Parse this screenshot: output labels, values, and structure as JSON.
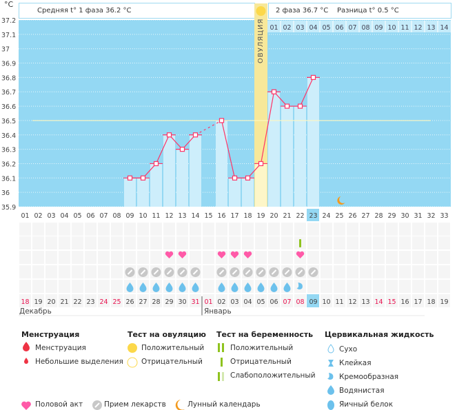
{
  "header": {
    "phase1": "Средняя t° 1 фаза 36.2 °C",
    "phase2": "2 фаза 36.7 °C",
    "diff": "Разница t° 0.5 °C",
    "unit": "°C",
    "ovulation_label": "ОВУЛЯЦИЯ"
  },
  "chart_data": {
    "type": "bar",
    "title": "",
    "ylabel": "°C",
    "ylim": [
      35.9,
      37.2
    ],
    "yticks": [
      "37.2",
      "37.1",
      "37",
      "36.9",
      "36.8",
      "36.7",
      "36.6",
      "36.5",
      "36.4",
      "36.3",
      "36.2",
      "36.1",
      "36",
      "35.9"
    ],
    "cycle_days": [
      "01",
      "02",
      "03",
      "04",
      "05",
      "06",
      "07",
      "08",
      "09",
      "10",
      "11",
      "12",
      "13",
      "14",
      "15",
      "16",
      "17",
      "18",
      "19",
      "20",
      "21",
      "22",
      "23",
      "24",
      "25",
      "26",
      "27",
      "28",
      "29",
      "30",
      "31",
      "32",
      "33"
    ],
    "phase2_days": [
      "01",
      "02",
      "03",
      "04",
      "05",
      "06",
      "07",
      "08",
      "09",
      "10",
      "11",
      "12",
      "13",
      "14"
    ],
    "temperatures": [
      null,
      null,
      null,
      null,
      null,
      null,
      null,
      null,
      36.1,
      36.1,
      36.2,
      36.4,
      36.3,
      36.4,
      null,
      36.5,
      36.1,
      36.1,
      36.2,
      36.7,
      36.6,
      36.6,
      36.8,
      null,
      null,
      null,
      null,
      null,
      null,
      null,
      null,
      null,
      null
    ],
    "coverline": 36.5,
    "ovulation_day": 19,
    "current_day": 23,
    "moon_day": 25,
    "calendar_dates": [
      "18",
      "19",
      "20",
      "21",
      "22",
      "23",
      "24",
      "25",
      "26",
      "27",
      "28",
      "29",
      "30",
      "31",
      "01",
      "02",
      "03",
      "04",
      "05",
      "06",
      "07",
      "08",
      "09",
      "10",
      "11",
      "12",
      "13",
      "14",
      "15",
      "16",
      "17",
      "18",
      "19"
    ],
    "weekend_indices": [
      0,
      6,
      7,
      13,
      14,
      20,
      21,
      27,
      28
    ],
    "months": [
      "Декабрь",
      "Январь"
    ],
    "pregnancy_test_negative_days": [
      22
    ],
    "intercourse_days": [
      12,
      13,
      16,
      17,
      18,
      22
    ],
    "medication_days": [
      9,
      10,
      11,
      12,
      13,
      14,
      16,
      17,
      18,
      19,
      20,
      21,
      22,
      23
    ],
    "watery_fluid_days": [
      9,
      10,
      11,
      12,
      13,
      14,
      16,
      17,
      18,
      19,
      20,
      21
    ],
    "creamy_fluid_days": [
      22
    ]
  },
  "legend": {
    "menstruation": {
      "title": "Менструация",
      "items": [
        "Менструация",
        "Небольшие выделения"
      ]
    },
    "ovulation_test": {
      "title": "Тест на овуляцию",
      "items": [
        "Положительный",
        "Отрицательный"
      ]
    },
    "pregnancy_test": {
      "title": "Тест на беременность",
      "items": [
        "Положительный",
        "Отрицательный",
        "Слабоположительный"
      ]
    },
    "cervical": {
      "title": "Цервикальная жидкость",
      "items": [
        "Сухо",
        "Клейкая",
        "Кремообразная",
        "Водянистая",
        "Яичный белок"
      ]
    },
    "bottom": [
      "Половой акт",
      "Прием лекарств",
      "Лунный календарь"
    ]
  },
  "colors": {
    "bg": "#94d8f3",
    "bar": "#cdeefb",
    "line": "#ff3366",
    "ovulation": "#f7e89a",
    "heart": "#ff5aa8",
    "pill": "#c8c8c8",
    "drop": "#6cc1ec",
    "green": "#8fc31f",
    "red": "#ee3344",
    "sun": "#fcd84a",
    "moon": "#f39a1e"
  }
}
